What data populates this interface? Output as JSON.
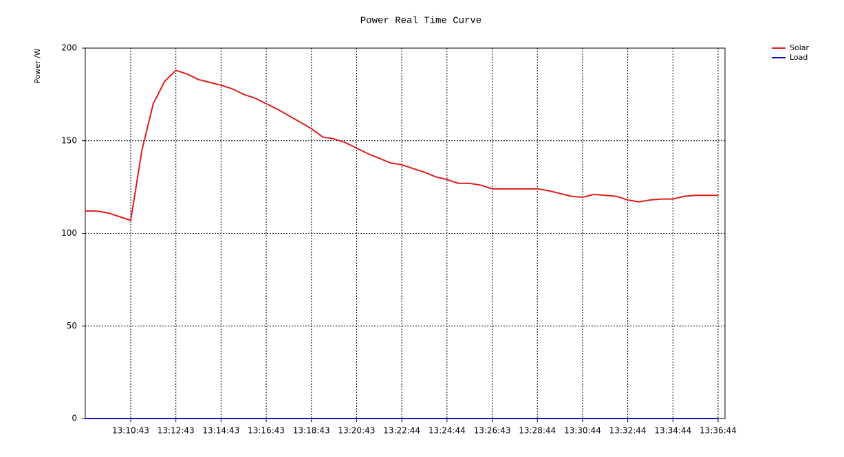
{
  "chart_data": {
    "type": "line",
    "title": "Power Real Time Curve",
    "y_label": "Power /W",
    "categories": [
      null,
      null,
      null,
      null,
      "13:10:43",
      null,
      null,
      null,
      "13:12:43",
      null,
      null,
      null,
      "13:14:43",
      null,
      null,
      null,
      "13:16:43",
      null,
      null,
      null,
      "13:18:43",
      null,
      null,
      null,
      "13:20:43",
      null,
      null,
      null,
      "13:22:44",
      null,
      null,
      null,
      "13:24:44",
      null,
      null,
      null,
      "13:26:43",
      null,
      null,
      null,
      "13:28:44",
      null,
      null,
      null,
      "13:30:44",
      null,
      null,
      null,
      "13:32:44",
      null,
      null,
      null,
      "13:34:44",
      null,
      null,
      null,
      "13:36:44"
    ],
    "series": [
      {
        "name": "Solar",
        "color": "#e01b1b",
        "values": [
          112,
          112,
          111,
          109,
          107,
          145,
          170,
          182,
          188,
          186,
          183,
          181.5,
          180,
          178,
          175,
          173,
          170,
          167,
          163.5,
          160,
          156.5,
          152,
          151,
          149,
          146,
          143,
          140.5,
          138,
          137,
          135,
          133,
          130.5,
          129,
          127,
          127,
          126,
          124,
          124,
          124,
          124,
          124,
          123,
          121.5,
          120,
          119.5,
          121,
          120.5,
          120,
          118,
          117,
          118,
          118.5,
          118.5,
          120,
          120.5,
          120.5,
          120.5
        ]
      },
      {
        "name": "Load",
        "color": "#1010c8",
        "values": [
          0,
          0,
          0,
          0,
          0,
          0,
          0,
          0,
          0,
          0,
          0,
          0,
          0,
          0,
          0,
          0,
          0,
          0,
          0,
          0,
          0,
          0,
          0,
          0,
          0,
          0,
          0,
          0,
          0,
          0,
          0,
          0,
          0,
          0,
          0,
          0,
          0,
          0,
          0,
          0,
          0,
          0,
          0,
          0,
          0,
          0,
          0,
          0,
          0,
          0,
          0,
          0,
          0,
          0,
          0,
          0,
          0
        ]
      }
    ],
    "ylim": [
      0,
      200
    ],
    "yticks": [
      0,
      50,
      100,
      150,
      200
    ],
    "grid": true,
    "legend": "top-right"
  }
}
